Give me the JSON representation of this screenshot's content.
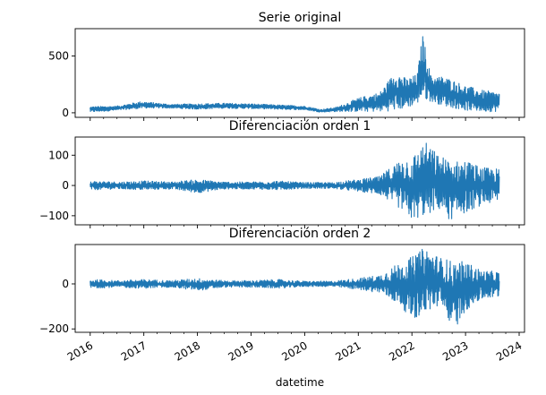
{
  "chart_data": [
    {
      "type": "line",
      "title": "Serie original",
      "ylim": [
        -40,
        740
      ],
      "yticks": [
        0,
        500
      ],
      "xlabel": "",
      "series": [
        {
          "color": "#1f77b4",
          "points": [
            [
              2016.0,
              35
            ],
            [
              2016.5,
              40
            ],
            [
              2017.0,
              65
            ],
            [
              2017.5,
              60
            ],
            [
              2018.0,
              55
            ],
            [
              2018.5,
              62
            ],
            [
              2019.0,
              58
            ],
            [
              2019.5,
              52
            ],
            [
              2020.0,
              42
            ],
            [
              2020.3,
              15
            ],
            [
              2020.6,
              25
            ],
            [
              2021.0,
              45
            ],
            [
              2021.4,
              90
            ],
            [
              2021.7,
              140
            ],
            [
              2021.9,
              180
            ],
            [
              2022.0,
              240
            ],
            [
              2022.15,
              300
            ],
            [
              2022.2,
              700
            ],
            [
              2022.3,
              260
            ],
            [
              2022.6,
              260
            ],
            [
              2023.0,
              180
            ],
            [
              2023.3,
              140
            ],
            [
              2023.63,
              140
            ]
          ],
          "upper": [
            [
              2016.0,
              55
            ],
            [
              2016.5,
              60
            ],
            [
              2016.95,
              100
            ],
            [
              2017.5,
              75
            ],
            [
              2018.0,
              80
            ],
            [
              2018.5,
              85
            ],
            [
              2019.0,
              80
            ],
            [
              2019.5,
              70
            ],
            [
              2020.0,
              60
            ],
            [
              2020.3,
              30
            ],
            [
              2020.6,
              50
            ],
            [
              2021.0,
              130
            ],
            [
              2021.4,
              180
            ],
            [
              2021.7,
              370
            ],
            [
              2021.9,
              300
            ],
            [
              2022.1,
              340
            ],
            [
              2022.2,
              700
            ],
            [
              2022.35,
              330
            ],
            [
              2022.6,
              320
            ],
            [
              2023.0,
              240
            ],
            [
              2023.3,
              200
            ],
            [
              2023.63,
              180
            ]
          ],
          "lower": [
            [
              2016.0,
              5
            ],
            [
              2016.5,
              20
            ],
            [
              2017.0,
              40
            ],
            [
              2017.5,
              40
            ],
            [
              2018.0,
              30
            ],
            [
              2018.5,
              40
            ],
            [
              2019.0,
              35
            ],
            [
              2019.5,
              30
            ],
            [
              2020.0,
              25
            ],
            [
              2020.3,
              5
            ],
            [
              2020.6,
              10
            ],
            [
              2021.0,
              10
            ],
            [
              2021.4,
              10
            ],
            [
              2021.7,
              20
            ],
            [
              2021.9,
              40
            ],
            [
              2022.1,
              80
            ],
            [
              2022.2,
              120
            ],
            [
              2022.35,
              100
            ],
            [
              2022.6,
              60
            ],
            [
              2023.0,
              20
            ],
            [
              2023.3,
              10
            ],
            [
              2023.63,
              10
            ]
          ]
        }
      ]
    },
    {
      "type": "line",
      "title": "Diferenciación orden 1",
      "ylim": [
        -130,
        160
      ],
      "yticks": [
        -100,
        0,
        100
      ],
      "xlabel": "",
      "series": [
        {
          "color": "#1f77b4",
          "upper": [
            [
              2016.0,
              15
            ],
            [
              2016.5,
              12
            ],
            [
              2017.0,
              15
            ],
            [
              2017.5,
              12
            ],
            [
              2018.0,
              20
            ],
            [
              2018.5,
              12
            ],
            [
              2019.0,
              12
            ],
            [
              2019.5,
              15
            ],
            [
              2020.0,
              10
            ],
            [
              2020.5,
              10
            ],
            [
              2021.0,
              20
            ],
            [
              2021.4,
              30
            ],
            [
              2021.8,
              90
            ],
            [
              2022.0,
              95
            ],
            [
              2022.25,
              145
            ],
            [
              2022.5,
              100
            ],
            [
              2022.8,
              80
            ],
            [
              2023.0,
              85
            ],
            [
              2023.3,
              60
            ],
            [
              2023.63,
              55
            ]
          ],
          "lower": [
            [
              2016.0,
              -15
            ],
            [
              2016.5,
              -12
            ],
            [
              2017.0,
              -15
            ],
            [
              2017.5,
              -12
            ],
            [
              2018.0,
              -25
            ],
            [
              2018.5,
              -12
            ],
            [
              2019.0,
              -12
            ],
            [
              2019.5,
              -15
            ],
            [
              2020.0,
              -10
            ],
            [
              2020.5,
              -10
            ],
            [
              2021.0,
              -20
            ],
            [
              2021.4,
              -30
            ],
            [
              2021.8,
              -80
            ],
            [
              2022.0,
              -115
            ],
            [
              2022.25,
              -100
            ],
            [
              2022.5,
              -80
            ],
            [
              2022.7,
              -115
            ],
            [
              2023.0,
              -90
            ],
            [
              2023.3,
              -65
            ],
            [
              2023.63,
              -55
            ]
          ]
        }
      ]
    },
    {
      "type": "line",
      "title": "Diferenciación orden 2",
      "ylim": [
        -215,
        175
      ],
      "yticks": [
        -200,
        0
      ],
      "xlabel": "datetime",
      "xticks": [
        2016,
        2017,
        2018,
        2019,
        2020,
        2021,
        2022,
        2023,
        2024
      ],
      "xticklabels": [
        "2016",
        "2017",
        "2018",
        "2019",
        "2020",
        "2021",
        "2022",
        "2023",
        "2024"
      ],
      "series": [
        {
          "color": "#1f77b4",
          "upper": [
            [
              2016.0,
              20
            ],
            [
              2016.5,
              15
            ],
            [
              2017.0,
              20
            ],
            [
              2017.5,
              15
            ],
            [
              2018.0,
              25
            ],
            [
              2018.5,
              15
            ],
            [
              2019.0,
              15
            ],
            [
              2019.5,
              20
            ],
            [
              2020.0,
              12
            ],
            [
              2020.5,
              12
            ],
            [
              2021.0,
              25
            ],
            [
              2021.4,
              40
            ],
            [
              2021.8,
              100
            ],
            [
              2022.0,
              120
            ],
            [
              2022.25,
              165
            ],
            [
              2022.5,
              120
            ],
            [
              2022.8,
              100
            ],
            [
              2023.0,
              100
            ],
            [
              2023.3,
              60
            ],
            [
              2023.63,
              55
            ]
          ],
          "lower": [
            [
              2016.0,
              -20
            ],
            [
              2016.5,
              -15
            ],
            [
              2017.0,
              -20
            ],
            [
              2017.5,
              -15
            ],
            [
              2018.0,
              -30
            ],
            [
              2018.5,
              -15
            ],
            [
              2019.0,
              -15
            ],
            [
              2019.5,
              -20
            ],
            [
              2020.0,
              -12
            ],
            [
              2020.5,
              -12
            ],
            [
              2021.0,
              -25
            ],
            [
              2021.4,
              -40
            ],
            [
              2021.8,
              -100
            ],
            [
              2022.0,
              -160
            ],
            [
              2022.25,
              -130
            ],
            [
              2022.5,
              -100
            ],
            [
              2022.8,
              -200
            ],
            [
              2023.0,
              -120
            ],
            [
              2023.3,
              -70
            ],
            [
              2023.63,
              -60
            ]
          ]
        }
      ]
    }
  ]
}
